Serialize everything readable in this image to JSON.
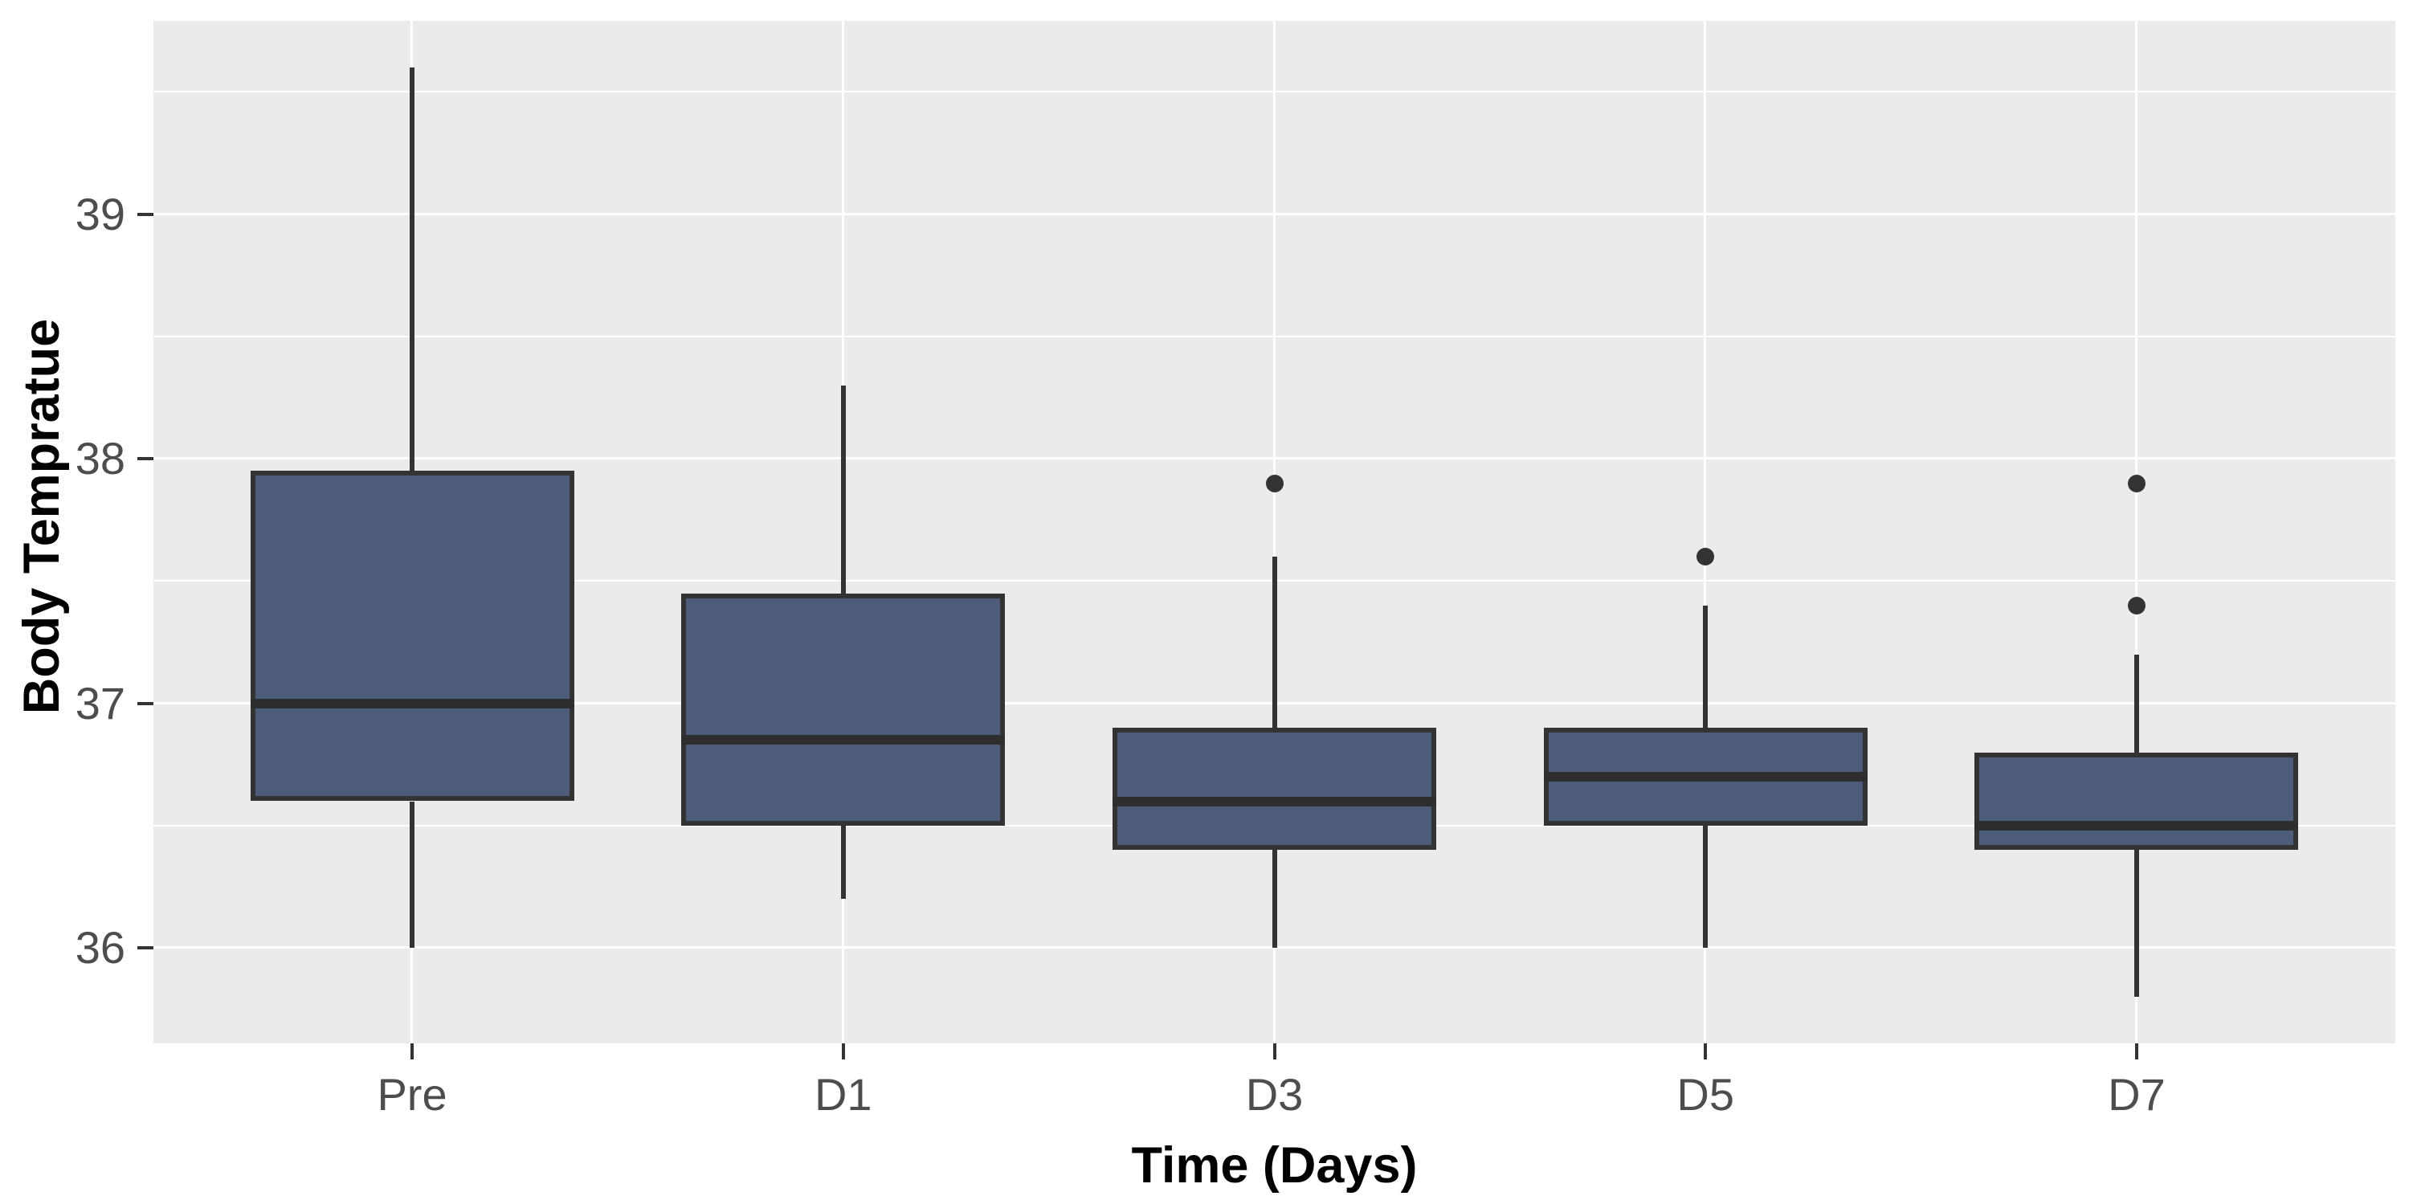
{
  "chart_data": {
    "type": "boxplot",
    "title": "",
    "xlabel": "Time (Days)",
    "ylabel": "Body Tempratue",
    "categories": [
      "Pre",
      "D1",
      "D3",
      "D5",
      "D7"
    ],
    "y_tick_labels": [
      "36",
      "37",
      "38",
      "39"
    ],
    "y_ticks": [
      36,
      37,
      38,
      39
    ],
    "y_minor_ticks": [
      36.5,
      37.5,
      38.5,
      39.5
    ],
    "ylim": [
      35.61,
      39.79
    ],
    "grid": true,
    "legend": false,
    "panel_bg": "#EBEBEB",
    "grid_color": "#FFFFFF",
    "box_fill": "#4D5C78",
    "box_stroke": "#333333",
    "tick_text_color": "#4D4D4D",
    "title_text_color": "#000000",
    "series": [
      {
        "category": "Pre",
        "min": 36.0,
        "q1": 36.6,
        "median": 37.0,
        "q3": 37.95,
        "max": 39.6,
        "outliers": []
      },
      {
        "category": "D1",
        "min": 36.2,
        "q1": 36.5,
        "median": 36.85,
        "q3": 37.45,
        "max": 38.3,
        "outliers": []
      },
      {
        "category": "D3",
        "min": 36.0,
        "q1": 36.4,
        "median": 36.6,
        "q3": 36.9,
        "max": 37.6,
        "outliers": [
          37.9
        ]
      },
      {
        "category": "D5",
        "min": 36.0,
        "q1": 36.5,
        "median": 36.7,
        "q3": 36.9,
        "max": 37.4,
        "outliers": [
          37.6
        ]
      },
      {
        "category": "D7",
        "min": 35.8,
        "q1": 36.4,
        "median": 36.5,
        "q3": 36.8,
        "max": 37.2,
        "outliers": [
          37.4,
          37.9
        ]
      }
    ]
  }
}
